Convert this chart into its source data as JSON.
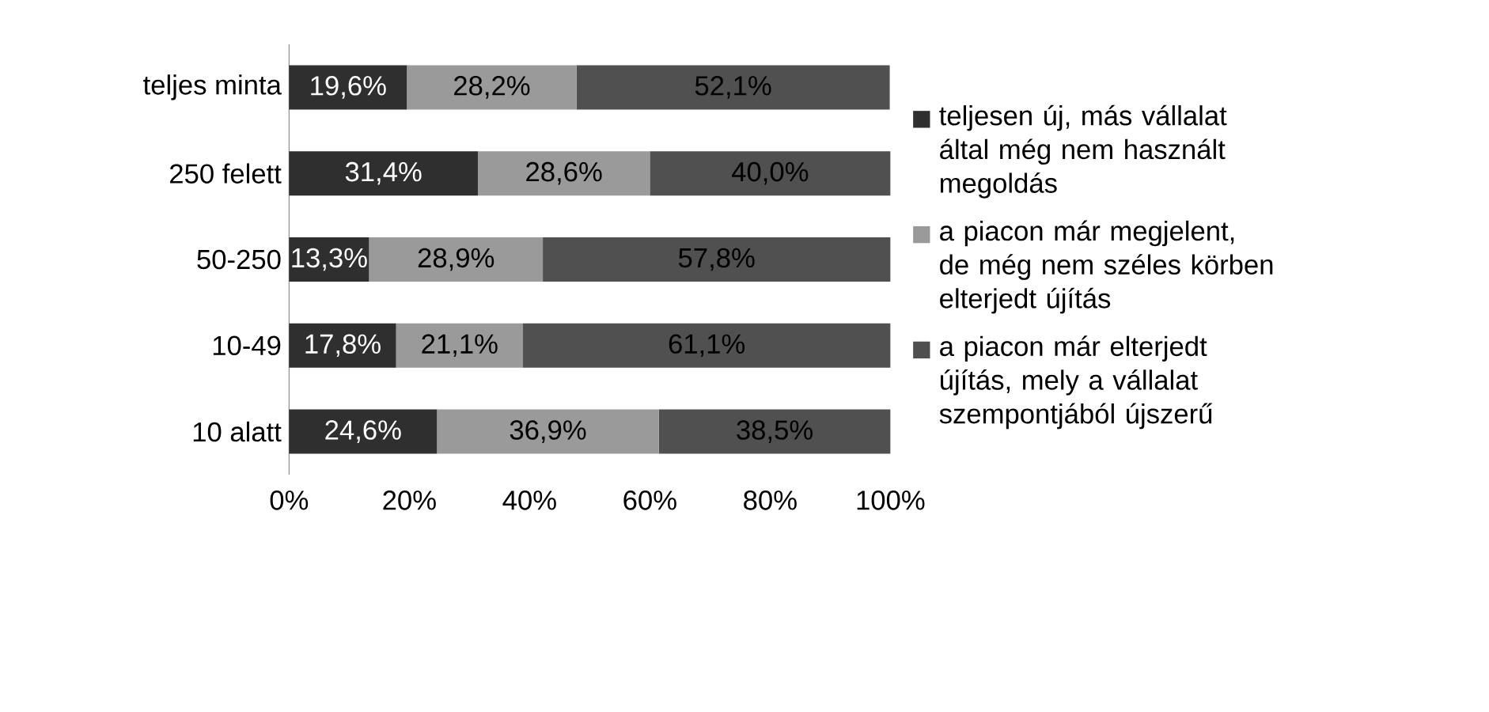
{
  "chart_data": {
    "type": "bar",
    "orientation": "horizontal",
    "stacked": true,
    "categories": [
      "teljes minta",
      "250 felett",
      "50-250",
      "10-49",
      "10 alatt"
    ],
    "series": [
      {
        "name": "teljesen új, más vállalat által még nem használt megoldás",
        "color": "#2f2f2f",
        "values": [
          19.6,
          31.4,
          13.3,
          17.8,
          24.6
        ],
        "value_labels": [
          "19,6%",
          "31,4%",
          "13,3%",
          "17,8%",
          "24,6%"
        ]
      },
      {
        "name": "a piacon már megjelent, de még nem széles körben elterjedt újítás",
        "color": "#9a9a9a",
        "values": [
          28.2,
          28.6,
          28.9,
          21.1,
          36.9
        ],
        "value_labels": [
          "28,2%",
          "28,6%",
          "28,9%",
          "21,1%",
          "36,9%"
        ]
      },
      {
        "name": "a piacon már elterjedt újítás, mely a vállalat szempontjából újszerű",
        "color": "#505050",
        "values": [
          52.1,
          40.0,
          57.8,
          61.1,
          38.5
        ],
        "value_labels": [
          "52,1%",
          "40,0%",
          "57,8%",
          "61,1%",
          "38,5%"
        ]
      }
    ],
    "xlim": [
      0,
      100
    ],
    "xticks": [
      {
        "value": 0,
        "label": "0%"
      },
      {
        "value": 20,
        "label": "20%"
      },
      {
        "value": 40,
        "label": "40%"
      },
      {
        "value": 60,
        "label": "60%"
      },
      {
        "value": 80,
        "label": "80%"
      },
      {
        "value": 100,
        "label": "100%"
      }
    ],
    "legend": "right"
  }
}
